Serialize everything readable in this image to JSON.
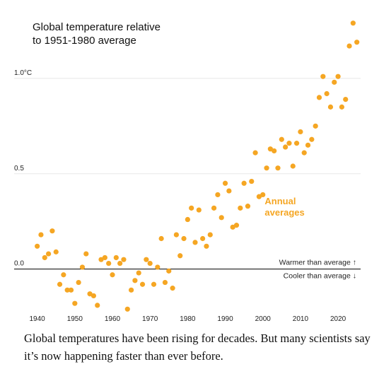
{
  "chart_data": {
    "type": "scatter",
    "title_lines": [
      "Global temperature relative",
      "to 1951-1980 average"
    ],
    "xlim": [
      1938,
      2026
    ],
    "ylim": [
      -0.22,
      1.3
    ],
    "x_ticks": [
      1940,
      1950,
      1960,
      1970,
      1980,
      1990,
      2000,
      2010,
      2020
    ],
    "x_tick_labels": [
      "1940",
      "1950",
      "1960",
      "1970",
      "1980",
      "1990",
      "2000",
      "2010",
      "2020"
    ],
    "y_ticks": [
      0,
      0.5,
      1.0
    ],
    "y_tick_labels": [
      "0.0",
      "0.5",
      "1.0°C"
    ],
    "grid": "horizontal",
    "series": [
      {
        "name": "Annual averages",
        "color": "#f5a623",
        "x": [
          1940,
          1941,
          1942,
          1943,
          1944,
          1945,
          1946,
          1947,
          1948,
          1949,
          1950,
          1951,
          1952,
          1953,
          1954,
          1955,
          1956,
          1957,
          1958,
          1959,
          1960,
          1961,
          1962,
          1963,
          1964,
          1965,
          1966,
          1967,
          1968,
          1969,
          1970,
          1971,
          1972,
          1973,
          1974,
          1975,
          1976,
          1977,
          1978,
          1979,
          1980,
          1981,
          1982,
          1983,
          1984,
          1985,
          1986,
          1987,
          1988,
          1989,
          1990,
          1991,
          1992,
          1993,
          1994,
          1995,
          1996,
          1997,
          1998,
          1999,
          2000,
          2001,
          2002,
          2003,
          2004,
          2005,
          2006,
          2007,
          2008,
          2009,
          2010,
          2011,
          2012,
          2013,
          2014,
          2015,
          2016,
          2017,
          2018,
          2019,
          2020,
          2021,
          2022,
          2023,
          2024,
          2025
        ],
        "y": [
          0.12,
          0.18,
          0.06,
          0.08,
          0.2,
          0.09,
          -0.08,
          -0.03,
          -0.11,
          -0.11,
          -0.18,
          -0.07,
          0.01,
          0.08,
          -0.13,
          -0.14,
          -0.19,
          0.05,
          0.06,
          0.03,
          -0.03,
          0.06,
          0.03,
          0.05,
          -0.21,
          -0.11,
          -0.06,
          -0.02,
          -0.08,
          0.05,
          0.03,
          -0.08,
          0.01,
          0.16,
          -0.07,
          -0.01,
          -0.1,
          0.18,
          0.07,
          0.16,
          0.26,
          0.32,
          0.14,
          0.31,
          0.16,
          0.12,
          0.18,
          0.32,
          0.39,
          0.27,
          0.45,
          0.41,
          0.22,
          0.23,
          0.32,
          0.45,
          0.33,
          0.46,
          0.61,
          0.38,
          0.39,
          0.53,
          0.63,
          0.62,
          0.53,
          0.68,
          0.64,
          0.66,
          0.54,
          0.66,
          0.72,
          0.61,
          0.65,
          0.68,
          0.75,
          0.9,
          1.01,
          0.92,
          0.85,
          0.98,
          1.01,
          0.85,
          0.89,
          1.17,
          1.29,
          1.19
        ]
      }
    ],
    "annotation": {
      "label_lines": [
        "Annual",
        "averages"
      ],
      "x": 2000.5,
      "y": 0.31
    },
    "reference": {
      "above": "Warmer than average ↑",
      "below": "Cooler than average ↓"
    }
  },
  "caption": "Global temperatures have been rising for decades. But many scientists say it’s now happening faster than ever before."
}
